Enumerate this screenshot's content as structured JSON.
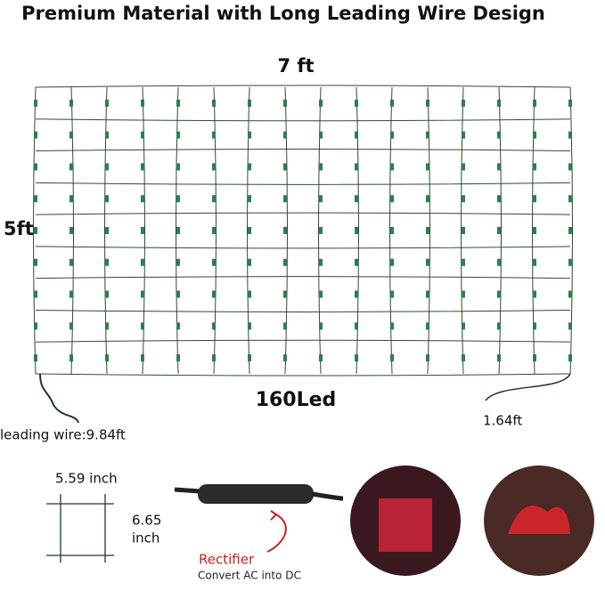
{
  "header": {
    "title": "Premium Material with Long Leading Wire Design"
  },
  "net": {
    "width_label": "7 ft",
    "height_label": "5ft",
    "led_label": "160Led",
    "leading_wire_label": "leading wire:9.84ft",
    "tail_label": "1.64ft"
  },
  "cell": {
    "width_label": "5.59 inch",
    "height_value": "6.65",
    "height_unit": "inch"
  },
  "rectifier": {
    "label": "Rectifier",
    "caption": "Convert AC into DC"
  }
}
